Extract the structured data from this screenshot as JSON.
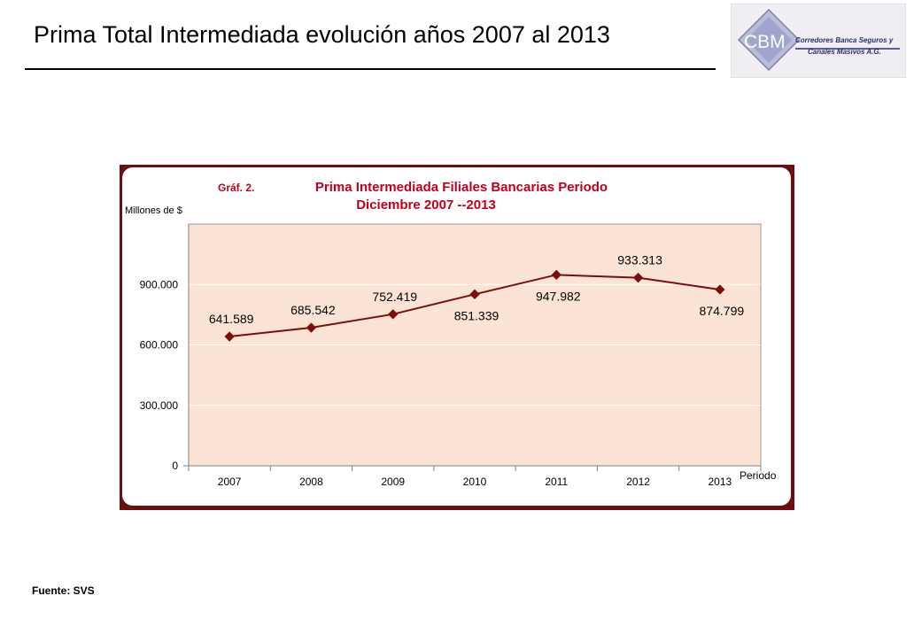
{
  "slide": {
    "title": "Prima Total Intermediada evolución años 2007 al 2013",
    "source": "Fuente: SVS"
  },
  "logo": {
    "acronym": "CBM",
    "line1": "Corredores Banca Seguros y",
    "line2": "Canales Masivos A.G."
  },
  "chart_data": {
    "type": "line",
    "figure_label": "Gráf. 2.",
    "title": "Prima Intermediada Filiales Bancarias Periodo",
    "subtitle": "Diciembre 2007 --2013",
    "ylabel": "Millones de $",
    "xlabel": "Periodo",
    "categories": [
      "2007",
      "2008",
      "2009",
      "2010",
      "2011",
      "2012",
      "2013"
    ],
    "values": [
      641589,
      685542,
      752419,
      851339,
      947982,
      933313,
      874799
    ],
    "data_labels": [
      "641.589",
      "685.542",
      "752.419",
      "851.339",
      "947.982",
      "933.313",
      "874.799"
    ],
    "ylim": [
      0,
      1200000
    ],
    "yticks": [
      0,
      300000,
      600000,
      900000
    ],
    "ytick_labels": [
      "0",
      "300.000",
      "600.000",
      "900.000"
    ],
    "grid": true,
    "colors": {
      "line": "#7b0d0d",
      "frame": "#6b0f0f",
      "plot_bg": "#fbe4d5",
      "title": "#c0001a"
    }
  }
}
